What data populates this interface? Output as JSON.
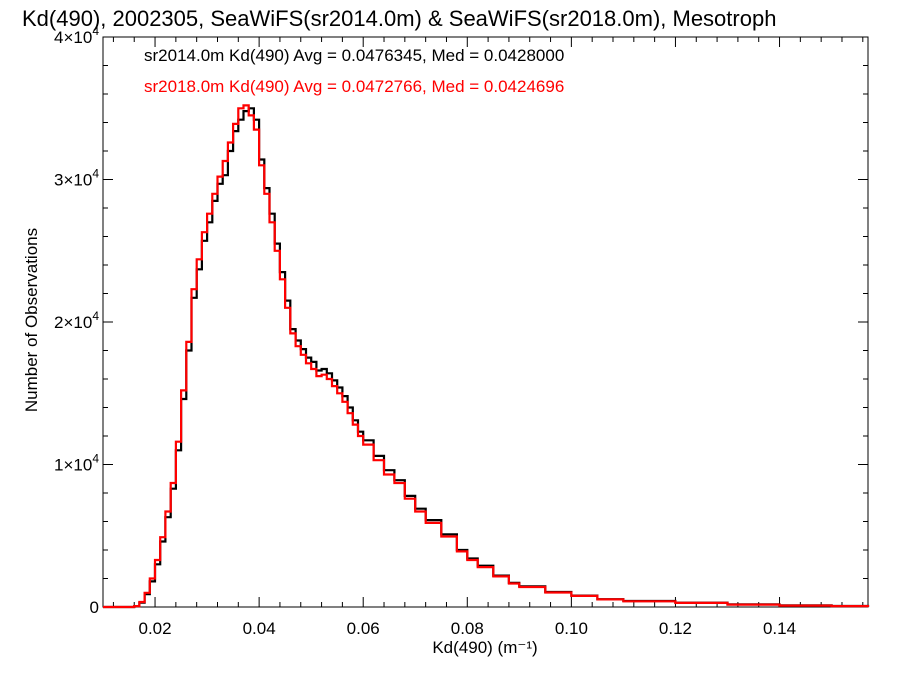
{
  "chart_data": {
    "type": "line",
    "title": "Kd(490), 2002305, SeaWiFS(sr2014.0m) & SeaWiFS(sr2018.0m), Mesotroph",
    "xlabel": "Kd(490) (m⁻¹)",
    "ylabel": "Number of Observations",
    "xlim": [
      0.01,
      0.157
    ],
    "ylim": [
      0,
      40000
    ],
    "x_ticks": [
      {
        "value": 0.02,
        "label": "0.02"
      },
      {
        "value": 0.04,
        "label": "0.04"
      },
      {
        "value": 0.06,
        "label": "0.06"
      },
      {
        "value": 0.08,
        "label": "0.08"
      },
      {
        "value": 0.1,
        "label": "0.10"
      },
      {
        "value": 0.12,
        "label": "0.12"
      },
      {
        "value": 0.14,
        "label": "0.14"
      }
    ],
    "y_ticks": [
      {
        "value": 0,
        "mantissa": "0",
        "exponent": ""
      },
      {
        "value": 10000,
        "mantissa": "1×10",
        "exponent": "4"
      },
      {
        "value": 20000,
        "mantissa": "2×10",
        "exponent": "4"
      },
      {
        "value": 30000,
        "mantissa": "3×10",
        "exponent": "4"
      },
      {
        "value": 40000,
        "mantissa": "4×10",
        "exponent": "4"
      }
    ],
    "grid": false,
    "step": "histogram",
    "annotations": [
      {
        "text": "sr2014.0m Kd(490) Avg = 0.0476345, Med = 0.0428000",
        "color": "#000000"
      },
      {
        "text": "sr2018.0m Kd(490) Avg = 0.0472766, Med = 0.0424696",
        "color": "#ff0000"
      }
    ],
    "series": [
      {
        "color": "#000000",
        "x": [
          0.01,
          0.014,
          0.016,
          0.017,
          0.018,
          0.019,
          0.02,
          0.021,
          0.022,
          0.023,
          0.024,
          0.025,
          0.026,
          0.027,
          0.028,
          0.029,
          0.03,
          0.031,
          0.032,
          0.033,
          0.034,
          0.035,
          0.036,
          0.037,
          0.038,
          0.039,
          0.04,
          0.041,
          0.042,
          0.043,
          0.044,
          0.045,
          0.046,
          0.047,
          0.048,
          0.049,
          0.05,
          0.051,
          0.052,
          0.053,
          0.054,
          0.055,
          0.056,
          0.057,
          0.058,
          0.059,
          0.06,
          0.062,
          0.064,
          0.066,
          0.068,
          0.07,
          0.072,
          0.075,
          0.078,
          0.08,
          0.082,
          0.085,
          0.088,
          0.09,
          0.095,
          0.1,
          0.105,
          0.11,
          0.12,
          0.13,
          0.14,
          0.15,
          0.157
        ],
        "values": [
          0,
          0,
          50,
          300,
          900,
          1800,
          3000,
          4600,
          6300,
          8300,
          11000,
          14600,
          18000,
          21700,
          23700,
          25700,
          27000,
          28500,
          29700,
          30300,
          32000,
          33400,
          34200,
          34800,
          35000,
          34200,
          31400,
          29400,
          27600,
          25500,
          23500,
          21500,
          19500,
          18700,
          18100,
          17500,
          17200,
          16600,
          16700,
          16400,
          15900,
          15400,
          14800,
          14000,
          13100,
          12300,
          11700,
          10600,
          9600,
          8900,
          7800,
          6900,
          6100,
          5100,
          4000,
          3400,
          2900,
          2200,
          1700,
          1450,
          1050,
          800,
          550,
          420,
          300,
          180,
          110,
          70,
          0
        ]
      },
      {
        "color": "#ff0000",
        "x": [
          0.01,
          0.014,
          0.016,
          0.017,
          0.018,
          0.019,
          0.02,
          0.021,
          0.022,
          0.023,
          0.024,
          0.025,
          0.026,
          0.027,
          0.028,
          0.029,
          0.03,
          0.031,
          0.032,
          0.033,
          0.034,
          0.035,
          0.036,
          0.037,
          0.038,
          0.039,
          0.04,
          0.041,
          0.042,
          0.043,
          0.044,
          0.045,
          0.046,
          0.047,
          0.048,
          0.049,
          0.05,
          0.051,
          0.052,
          0.053,
          0.054,
          0.055,
          0.056,
          0.057,
          0.058,
          0.059,
          0.06,
          0.062,
          0.064,
          0.066,
          0.068,
          0.07,
          0.072,
          0.075,
          0.078,
          0.08,
          0.082,
          0.085,
          0.088,
          0.09,
          0.095,
          0.1,
          0.105,
          0.11,
          0.12,
          0.13,
          0.14,
          0.15,
          0.157
        ],
        "values": [
          0,
          0,
          60,
          350,
          1000,
          2000,
          3300,
          4900,
          6700,
          8700,
          11600,
          15200,
          18600,
          22300,
          24400,
          26300,
          27600,
          29000,
          30200,
          31300,
          32600,
          33900,
          35000,
          35200,
          34500,
          33500,
          31000,
          29000,
          27000,
          25000,
          23000,
          21000,
          19200,
          18300,
          17700,
          17100,
          16700,
          16200,
          16300,
          16000,
          15500,
          15000,
          14400,
          13600,
          12800,
          12000,
          11400,
          10300,
          9300,
          8700,
          7600,
          6700,
          5900,
          4950,
          3900,
          3300,
          2800,
          2150,
          1650,
          1400,
          1020,
          780,
          530,
          400,
          290,
          170,
          100,
          60,
          0
        ]
      }
    ]
  }
}
